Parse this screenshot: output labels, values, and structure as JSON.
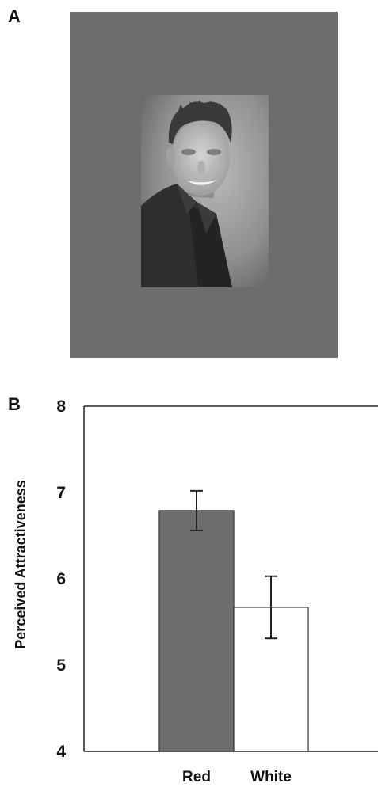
{
  "panels": {
    "a_label": "A",
    "b_label": "B"
  },
  "stimulus": {
    "background_color": "#6d6d6d",
    "photo_subject": "portrait-photo"
  },
  "chart_data": {
    "type": "bar",
    "categories": [
      "Red",
      "White"
    ],
    "values": [
      6.79,
      5.67
    ],
    "errors": [
      [
        6.56,
        7.02
      ],
      [
        5.31,
        6.03
      ]
    ],
    "colors": [
      "#6d6d6d",
      "#ffffff"
    ],
    "title": "",
    "xlabel": "",
    "ylabel": "Perceived Attractiveness",
    "ylim": [
      4,
      8
    ],
    "yticks": [
      "4",
      "5",
      "6",
      "7",
      "8"
    ],
    "grid": false
  }
}
